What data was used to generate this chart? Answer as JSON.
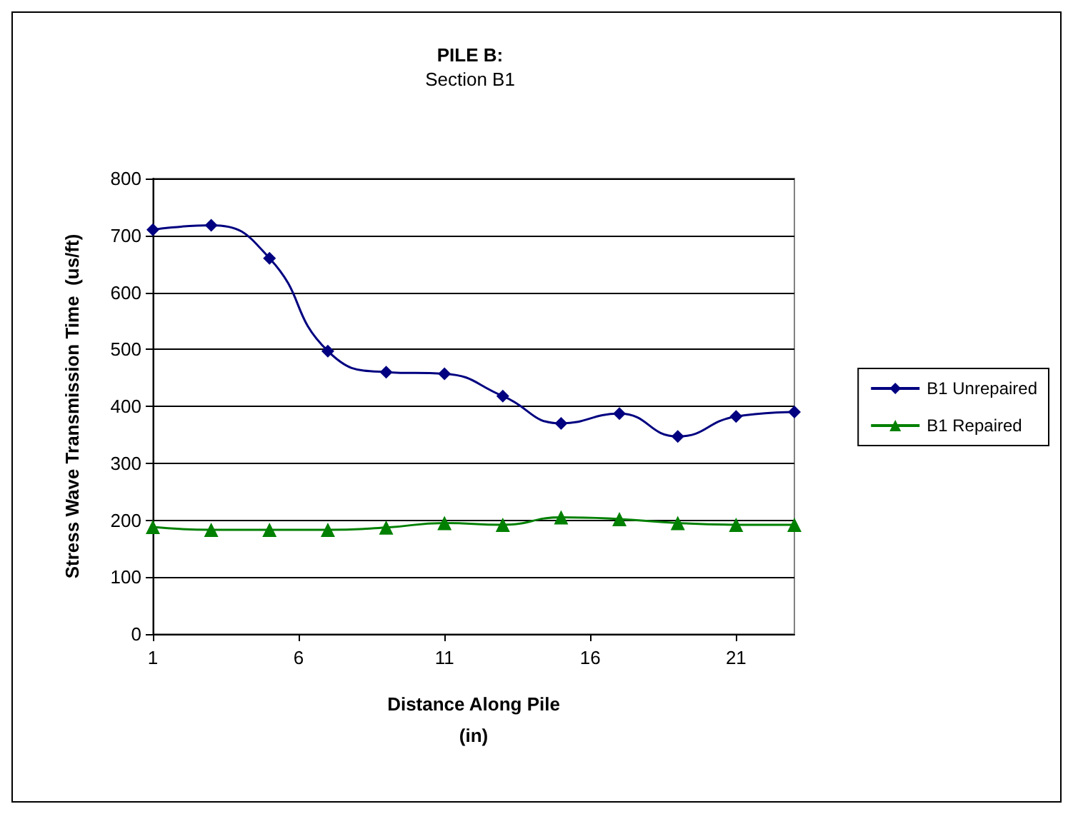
{
  "chart_data": {
    "type": "line",
    "title": "PILE B:",
    "subtitle": "Section B1",
    "xlabel": "Distance Along Pile\n(in)",
    "ylabel": "Stress Wave Transmission Time  (us/ft)",
    "x": [
      1,
      3,
      5,
      7,
      9,
      11,
      13,
      15,
      17,
      19,
      21,
      23
    ],
    "series": [
      {
        "name": "B1 Unrepaired",
        "color": "#000080",
        "marker": "diamond",
        "values": [
          710,
          718,
          660,
          497,
          460,
          457,
          418,
          370,
          387,
          347,
          382,
          390
        ]
      },
      {
        "name": "B1 Repaired",
        "color": "#008000",
        "marker": "triangle",
        "values": [
          188,
          183,
          183,
          183,
          187,
          195,
          192,
          205,
          202,
          195,
          192,
          192
        ]
      }
    ],
    "xlim": [
      1,
      23
    ],
    "xticks": [
      1,
      6,
      11,
      16,
      21
    ],
    "ylim": [
      0,
      800
    ],
    "yticks": [
      0,
      100,
      200,
      300,
      400,
      500,
      600,
      700,
      800
    ],
    "grid": "y",
    "legend": "right",
    "line_style": "solid"
  }
}
